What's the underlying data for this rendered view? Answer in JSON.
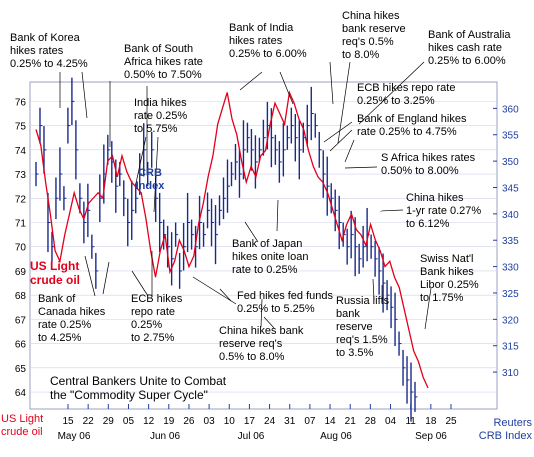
{
  "chart_data": {
    "type": "line",
    "title": "Central Bankers Unite to Combat\nthe \"Commodity Super Cycle\"",
    "left_axis_label": "US Light\ncrude oil",
    "right_axis_label": "Reuters\nCRB Index",
    "ylim_left": [
      63.3,
      76.8
    ],
    "ylim_right": [
      303,
      365
    ],
    "yticks_left": [
      64,
      65,
      66,
      67,
      68,
      69,
      70,
      71,
      72,
      73,
      74,
      75,
      76
    ],
    "yticks_right": [
      310,
      315,
      320,
      325,
      330,
      335,
      340,
      345,
      350,
      355,
      360
    ],
    "x_day_ticks": [
      "15",
      "22",
      "29",
      "05",
      "12",
      "19",
      "26",
      "03",
      "10",
      "17",
      "24",
      "31",
      "07",
      "14",
      "21",
      "28",
      "04",
      "11",
      "18",
      "25"
    ],
    "x_month_labels": [
      "May 06",
      "Jun 06",
      "Jul 06",
      "Aug 06",
      "Sep 06"
    ],
    "series": [
      {
        "name": "US Light\ncrude oil",
        "style": "bar",
        "color": "#1a2a8c",
        "axis": "left",
        "points": [
          [
            0,
            73
          ],
          [
            1,
            75
          ],
          [
            2,
            74
          ],
          [
            3,
            71
          ],
          [
            4,
            70
          ],
          [
            5,
            72
          ],
          [
            6,
            73
          ],
          [
            7,
            72
          ],
          [
            8,
            75
          ],
          [
            9,
            76
          ],
          [
            10,
            74
          ],
          [
            11,
            72
          ],
          [
            12,
            71
          ],
          [
            13,
            71.5
          ],
          [
            14,
            70
          ],
          [
            15,
            69
          ],
          [
            16,
            72
          ],
          [
            17,
            73
          ],
          [
            18,
            74
          ],
          [
            19,
            73.5
          ],
          [
            20,
            72.5
          ],
          [
            21,
            73
          ],
          [
            22,
            72
          ],
          [
            23,
            71
          ],
          [
            24,
            71.5
          ],
          [
            25,
            72
          ],
          [
            26,
            73
          ],
          [
            27,
            74
          ],
          [
            28,
            73
          ],
          [
            29,
            74
          ],
          [
            30,
            72
          ],
          [
            31,
            71
          ],
          [
            32,
            70.5
          ],
          [
            33,
            70
          ],
          [
            34,
            69.5
          ],
          [
            35,
            70.5
          ],
          [
            36,
            69
          ],
          [
            37,
            70
          ],
          [
            38,
            71
          ],
          [
            39,
            70.5
          ],
          [
            40,
            70
          ],
          [
            41,
            71
          ],
          [
            42,
            70.5
          ],
          [
            43,
            71.5
          ],
          [
            44,
            71
          ],
          [
            45,
            70.5
          ],
          [
            46,
            71.5
          ],
          [
            47,
            72
          ],
          [
            48,
            72.5
          ],
          [
            49,
            73
          ],
          [
            50,
            73.5
          ],
          [
            51,
            73
          ],
          [
            52,
            74
          ],
          [
            53,
            74.5
          ],
          [
            54,
            74
          ],
          [
            55,
            73.5
          ],
          [
            56,
            74
          ],
          [
            57,
            74.5
          ],
          [
            58,
            75
          ],
          [
            59,
            74.5
          ],
          [
            60,
            74
          ],
          [
            61,
            73.5
          ],
          [
            62,
            74
          ],
          [
            63,
            74.5
          ],
          [
            64,
            75
          ],
          [
            65,
            74.5
          ],
          [
            66,
            74
          ],
          [
            67,
            74.5
          ],
          [
            68,
            75
          ],
          [
            69,
            75.5
          ],
          [
            70,
            75
          ],
          [
            71,
            74
          ],
          [
            72,
            73
          ],
          [
            73,
            72.5
          ],
          [
            74,
            72
          ],
          [
            75,
            71.5
          ],
          [
            76,
            71
          ],
          [
            77,
            70.5
          ],
          [
            78,
            70
          ],
          [
            79,
            70.5
          ],
          [
            80,
            70
          ],
          [
            81,
            69.5
          ],
          [
            82,
            70
          ],
          [
            83,
            70.5
          ],
          [
            84,
            70
          ],
          [
            85,
            69.5
          ],
          [
            86,
            69
          ],
          [
            87,
            68.5
          ],
          [
            88,
            68
          ],
          [
            89,
            67.5
          ],
          [
            90,
            67
          ],
          [
            91,
            66
          ],
          [
            92,
            65
          ],
          [
            93,
            64.5
          ],
          [
            94,
            64
          ],
          [
            95,
            63.8
          ]
        ]
      },
      {
        "name": "CRB\nIndex",
        "style": "line",
        "color": "#e3001b",
        "axis": "right",
        "points": [
          [
            0,
            356
          ],
          [
            1,
            353
          ],
          [
            2,
            346
          ],
          [
            3,
            340
          ],
          [
            4,
            333
          ],
          [
            5,
            331
          ],
          [
            6,
            336
          ],
          [
            7,
            340
          ],
          [
            8,
            344
          ],
          [
            9,
            341
          ],
          [
            10,
            339
          ],
          [
            11,
            342
          ],
          [
            12,
            343
          ],
          [
            13,
            344
          ],
          [
            14,
            343
          ],
          [
            15,
            350
          ],
          [
            16,
            351
          ],
          [
            17,
            347
          ],
          [
            18,
            351
          ],
          [
            19,
            348
          ],
          [
            20,
            346
          ],
          [
            21,
            345
          ],
          [
            22,
            344
          ],
          [
            23,
            339
          ],
          [
            24,
            333
          ],
          [
            25,
            328
          ],
          [
            26,
            333
          ],
          [
            27,
            336
          ],
          [
            28,
            329
          ],
          [
            29,
            331
          ],
          [
            30,
            335
          ],
          [
            31,
            333
          ],
          [
            32,
            330
          ],
          [
            33,
            332
          ],
          [
            34,
            338
          ],
          [
            35,
            342
          ],
          [
            36,
            347
          ],
          [
            37,
            351
          ],
          [
            38,
            357
          ],
          [
            39,
            360
          ],
          [
            40,
            363
          ],
          [
            41,
            358
          ],
          [
            42,
            355
          ],
          [
            43,
            350
          ],
          [
            44,
            346
          ],
          [
            45,
            349
          ],
          [
            46,
            347
          ],
          [
            47,
            351
          ],
          [
            48,
            352
          ],
          [
            49,
            357
          ],
          [
            50,
            361
          ],
          [
            51,
            359
          ],
          [
            52,
            357
          ],
          [
            53,
            363
          ],
          [
            54,
            361
          ],
          [
            55,
            358
          ],
          [
            56,
            356
          ],
          [
            57,
            352
          ],
          [
            58,
            349
          ],
          [
            59,
            347
          ],
          [
            60,
            346
          ],
          [
            61,
            344
          ],
          [
            62,
            341
          ],
          [
            63,
            338
          ],
          [
            64,
            335
          ],
          [
            65,
            338
          ],
          [
            66,
            340
          ],
          [
            67,
            337
          ],
          [
            68,
            336
          ],
          [
            69,
            334
          ],
          [
            70,
            338
          ],
          [
            71,
            335
          ],
          [
            72,
            333
          ],
          [
            73,
            330
          ],
          [
            74,
            331
          ],
          [
            75,
            328
          ],
          [
            76,
            326
          ],
          [
            77,
            322
          ],
          [
            78,
            318
          ],
          [
            79,
            314
          ],
          [
            80,
            312
          ],
          [
            81,
            309
          ],
          [
            82,
            307
          ]
        ]
      }
    ],
    "annotations": [
      {
        "text": "Bank of Korea\nhikes rates\n0.25% to 4.25%",
        "color": "#000000"
      },
      {
        "text": "Bank of South\nAfrica hikes rate\n0.50% to 7.50%",
        "color": "#000000"
      },
      {
        "text": "India hikes\nrate 0.25%\nto 5.75%",
        "color": "#000000"
      },
      {
        "text": "Bank of India\nhikes rates\n0.25% to 6.00%",
        "color": "#000000"
      },
      {
        "text": "China hikes\nbank reserve\nreq's 0.5%\nto 8.0%",
        "color": "#000000"
      },
      {
        "text": "Bank of Australia\nhikes cash rate\n0.25% to 6.00%",
        "color": "#000000"
      },
      {
        "text": "ECB hikes repo rate\n0.25% to 3.25%",
        "color": "#000000"
      },
      {
        "text": "Bank of England hikes\nrate 0.25% to 4.75%",
        "color": "#000000"
      },
      {
        "text": "S Africa hikes rates\n0.50% to 8.00%",
        "color": "#000000"
      },
      {
        "text": "China hikes\n1-yr rate 0.27%\nto 6.12%",
        "color": "#000000"
      },
      {
        "text": "Bank of Japan\nhikes onite loan\nrate to 0.25%",
        "color": "#000000"
      },
      {
        "text": "Swiss Nat'l\nBank hikes\nLibor 0.25%\nto 1.75%",
        "color": "#000000"
      },
      {
        "text": "Bank of\nCanada hikes\nrate 0.25%\nto 4.25%",
        "color": "#000000"
      },
      {
        "text": "ECB hikes\nrepo rate\n0.25%\nto 2.75%",
        "color": "#000000"
      },
      {
        "text": "Fed hikes fed funds\n0.25% to 5.25%",
        "color": "#000000"
      },
      {
        "text": "China hikes bank\nreserve req's\n0.5% to 8.0%",
        "color": "#000000"
      },
      {
        "text": "Russia lifts\nbank\nreserve\nreq's 1.5%\nto 3.5%",
        "color": "#000000"
      }
    ],
    "colors": {
      "oil": "#1a2a8c",
      "crb": "#e3001b",
      "axis_text_blue": "#1f3f9e",
      "grid": "#cfd3e6"
    }
  }
}
